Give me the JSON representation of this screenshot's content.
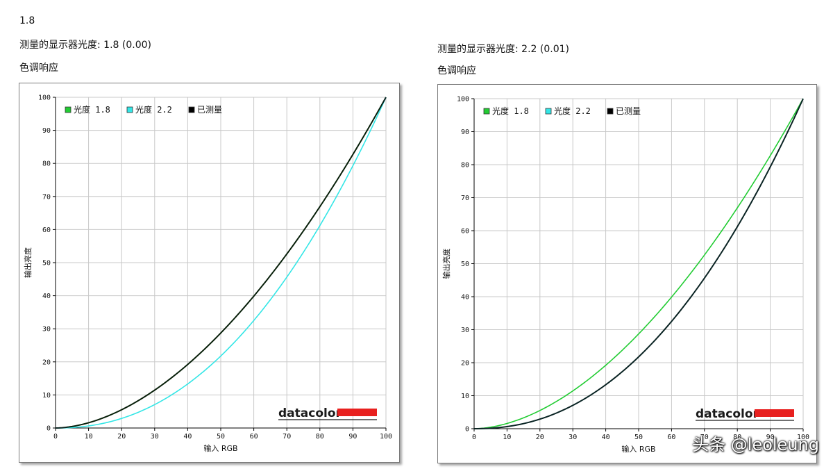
{
  "left_panel": {
    "top_label": "1.8",
    "measured_line": "测量的显示器光度:  1.8 (0.00)",
    "section_title": "色调响应"
  },
  "right_panel": {
    "measured_line": "测量的显示器光度:  2.2 (0.01)",
    "section_title": "色调响应"
  },
  "watermark": "头条 @leoleung",
  "colors": {
    "gamma18": "#22cc33",
    "gamma22": "#33e6e6",
    "measured": "#000000",
    "grid": "#c8c8c8",
    "brand_bar": "#e8201f"
  },
  "chart_data": [
    {
      "type": "line",
      "xlabel": "输入 RGB",
      "ylabel": "输出亮度",
      "xlim": [
        0,
        100
      ],
      "ylim": [
        0,
        100
      ],
      "x_ticks": [
        0,
        10,
        20,
        30,
        40,
        50,
        60,
        70,
        80,
        90,
        100
      ],
      "y_ticks": [
        0,
        10,
        20,
        30,
        40,
        50,
        60,
        70,
        80,
        90,
        100
      ],
      "grid": true,
      "legend_position": "top-left",
      "brand": "datacolor",
      "series": [
        {
          "name": "光度 1.8",
          "gamma": 1.8,
          "color": "#22cc33"
        },
        {
          "name": "光度 2.2",
          "gamma": 2.2,
          "color": "#33e6e6"
        },
        {
          "name": "已测量",
          "gamma": 1.8,
          "color": "#000000"
        }
      ]
    },
    {
      "type": "line",
      "xlabel": "输入 RGB",
      "ylabel": "输出亮度",
      "xlim": [
        0,
        100
      ],
      "ylim": [
        0,
        100
      ],
      "x_ticks": [
        0,
        10,
        20,
        30,
        40,
        50,
        60,
        70,
        80,
        90,
        100
      ],
      "y_ticks": [
        0,
        10,
        20,
        30,
        40,
        50,
        60,
        70,
        80,
        90,
        100
      ],
      "grid": true,
      "legend_position": "top-left",
      "brand": "datacolor",
      "series": [
        {
          "name": "光度 1.8",
          "gamma": 1.8,
          "color": "#22cc33"
        },
        {
          "name": "光度 2.2",
          "gamma": 2.2,
          "color": "#33e6e6"
        },
        {
          "name": "已测量",
          "gamma": 2.2,
          "color": "#000000"
        }
      ]
    }
  ]
}
